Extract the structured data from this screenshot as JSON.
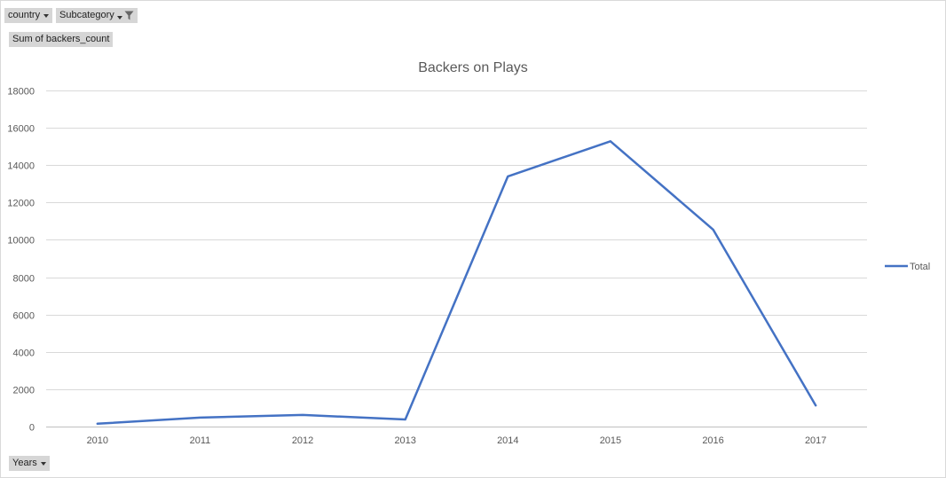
{
  "pivot": {
    "filters": [
      {
        "label": "country",
        "filtered": false
      },
      {
        "label": "Subcategory",
        "filtered": true
      }
    ],
    "value_field": "Sum of backers_count",
    "axis_field": "Years"
  },
  "chart_data": {
    "type": "line",
    "title": "Backers on Plays",
    "categories": [
      "2010",
      "2011",
      "2012",
      "2013",
      "2014",
      "2015",
      "2016",
      "2017"
    ],
    "series": [
      {
        "name": "Total",
        "values": [
          150,
          480,
          620,
          380,
          13400,
          15280,
          10550,
          1130
        ],
        "color": "#4472c4"
      }
    ],
    "ylim": [
      0,
      18000
    ],
    "yticks": [
      0,
      2000,
      4000,
      6000,
      8000,
      10000,
      12000,
      14000,
      16000,
      18000
    ],
    "grid": true,
    "legend_position": "right"
  }
}
